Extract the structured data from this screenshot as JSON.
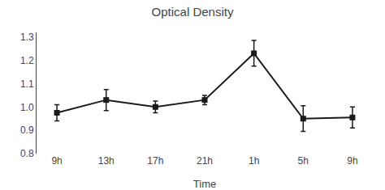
{
  "chart_data": {
    "type": "line",
    "title": "Optical Density",
    "xlabel": "Time",
    "categories": [
      "9h",
      "13h",
      "17h",
      "21h",
      "1h",
      "5h",
      "9h"
    ],
    "values": [
      0.975,
      1.03,
      1.0,
      1.03,
      1.23,
      0.95,
      0.955
    ],
    "errors": [
      0.035,
      0.045,
      0.025,
      0.02,
      0.055,
      0.055,
      0.045
    ],
    "color": "#1a1a1a",
    "marker": "square",
    "ylim": [
      0.8,
      1.32
    ],
    "yticks": [
      0.8,
      0.9,
      {
        "value": 1.0,
        "label": "1.0"
      },
      1.1,
      1.2,
      1.3
    ],
    "grid": false
  }
}
